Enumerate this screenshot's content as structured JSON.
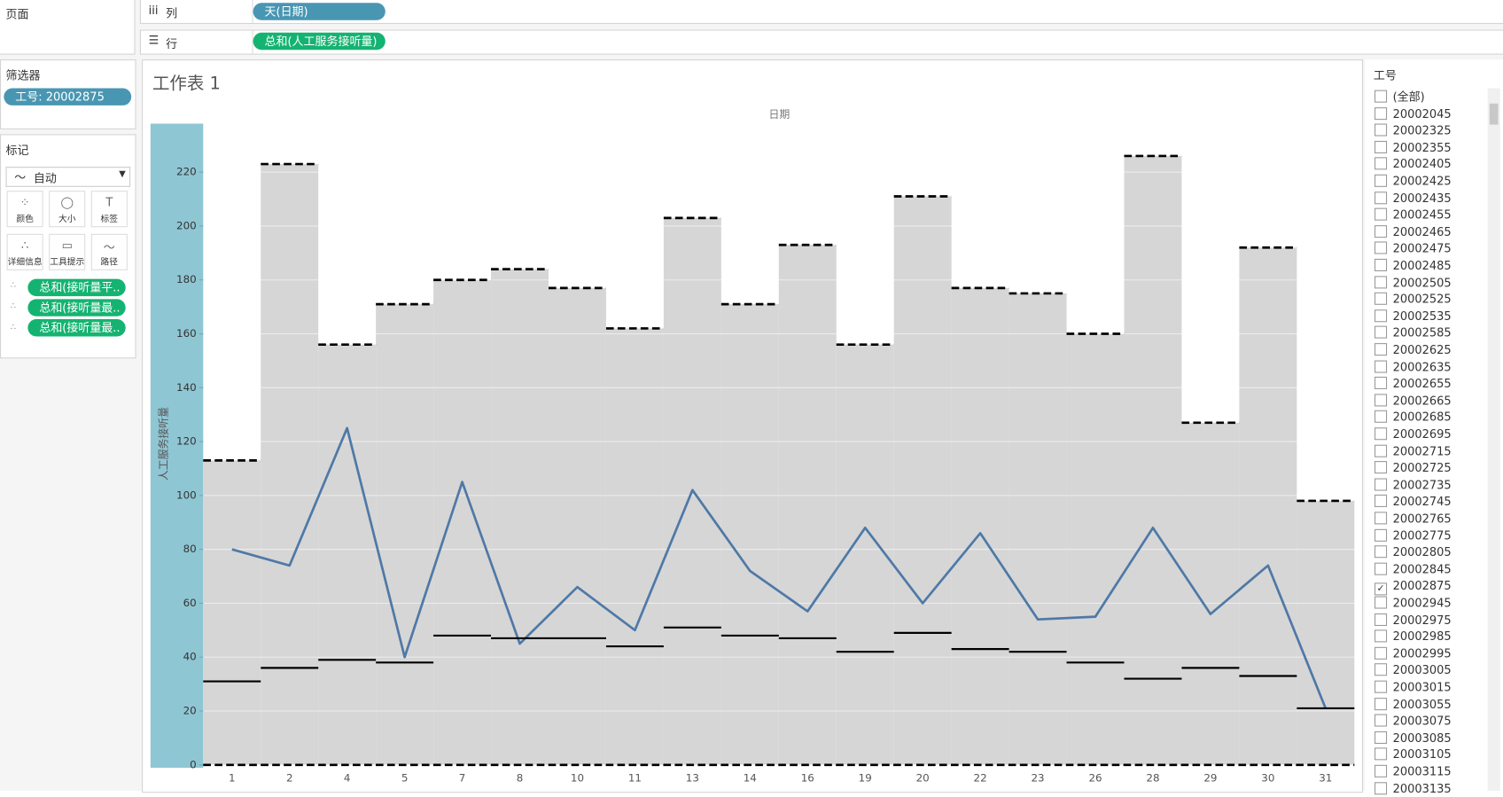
{
  "ui": {
    "pages_label": "页面",
    "columns_shelf": {
      "label": "列",
      "pill": "天(日期)"
    },
    "rows_shelf": {
      "label": "行",
      "pill": "总和(人工服务接听量)"
    },
    "filters": {
      "title": "筛选器",
      "pill": "工号: 20002875"
    },
    "marks": {
      "title": "标记",
      "mark_type": "自动",
      "buttons": [
        "颜色",
        "大小",
        "标签",
        "详细信息",
        "工具提示",
        "路径"
      ],
      "pills": [
        "总和(接听量平..",
        "总和(接听量最..",
        "总和(接听量最.."
      ]
    },
    "sheet_title": "工作表 1",
    "worker_filter": {
      "title": "工号",
      "items": [
        {
          "label": "(全部)",
          "checked": false
        },
        {
          "label": "20002045",
          "checked": false
        },
        {
          "label": "20002325",
          "checked": false
        },
        {
          "label": "20002355",
          "checked": false
        },
        {
          "label": "20002405",
          "checked": false
        },
        {
          "label": "20002425",
          "checked": false
        },
        {
          "label": "20002435",
          "checked": false
        },
        {
          "label": "20002455",
          "checked": false
        },
        {
          "label": "20002465",
          "checked": false
        },
        {
          "label": "20002475",
          "checked": false
        },
        {
          "label": "20002485",
          "checked": false
        },
        {
          "label": "20002505",
          "checked": false
        },
        {
          "label": "20002525",
          "checked": false
        },
        {
          "label": "20002535",
          "checked": false
        },
        {
          "label": "20002585",
          "checked": false
        },
        {
          "label": "20002625",
          "checked": false
        },
        {
          "label": "20002635",
          "checked": false
        },
        {
          "label": "20002655",
          "checked": false
        },
        {
          "label": "20002665",
          "checked": false
        },
        {
          "label": "20002685",
          "checked": false
        },
        {
          "label": "20002695",
          "checked": false
        },
        {
          "label": "20002715",
          "checked": false
        },
        {
          "label": "20002725",
          "checked": false
        },
        {
          "label": "20002735",
          "checked": false
        },
        {
          "label": "20002745",
          "checked": false
        },
        {
          "label": "20002765",
          "checked": false
        },
        {
          "label": "20002775",
          "checked": false
        },
        {
          "label": "20002805",
          "checked": false
        },
        {
          "label": "20002845",
          "checked": false
        },
        {
          "label": "20002875",
          "checked": true
        },
        {
          "label": "20002945",
          "checked": false
        },
        {
          "label": "20002975",
          "checked": false
        },
        {
          "label": "20002985",
          "checked": false
        },
        {
          "label": "20002995",
          "checked": false
        },
        {
          "label": "20003005",
          "checked": false
        },
        {
          "label": "20003015",
          "checked": false
        },
        {
          "label": "20003055",
          "checked": false
        },
        {
          "label": "20003075",
          "checked": false
        },
        {
          "label": "20003085",
          "checked": false
        },
        {
          "label": "20003105",
          "checked": false
        },
        {
          "label": "20003115",
          "checked": false
        },
        {
          "label": "20003135",
          "checked": false
        }
      ]
    }
  },
  "chart_data": {
    "type": "band-line",
    "x_header": "日期",
    "ylabel": "人工服务接听量",
    "categories": [
      "1",
      "2",
      "4",
      "5",
      "7",
      "8",
      "10",
      "11",
      "13",
      "14",
      "16",
      "19",
      "20",
      "22",
      "23",
      "26",
      "28",
      "29",
      "30",
      "31"
    ],
    "series": [
      {
        "mark": "band-top",
        "color": "#000000",
        "values": [
          113,
          223,
          156,
          171,
          180,
          184,
          177,
          162,
          203,
          171,
          193,
          156,
          211,
          177,
          175,
          160,
          226,
          127,
          192,
          98
        ]
      },
      {
        "mark": "line",
        "color": "#4e79a7",
        "values": [
          80,
          74,
          125,
          40,
          105,
          45,
          66,
          50,
          102,
          72,
          57,
          88,
          60,
          86,
          54,
          55,
          88,
          56,
          74,
          21
        ]
      },
      {
        "mark": "tick",
        "color": "#000000",
        "values": [
          31,
          36,
          39,
          38,
          48,
          47,
          47,
          44,
          51,
          48,
          47,
          42,
          49,
          43,
          42,
          38,
          32,
          36,
          33,
          21
        ]
      }
    ],
    "band_color": "#d6d6d6",
    "ylim": [
      0,
      238
    ],
    "yticks": [
      0,
      20,
      40,
      60,
      80,
      100,
      120,
      140,
      160,
      180,
      200,
      220
    ],
    "grid": true
  }
}
